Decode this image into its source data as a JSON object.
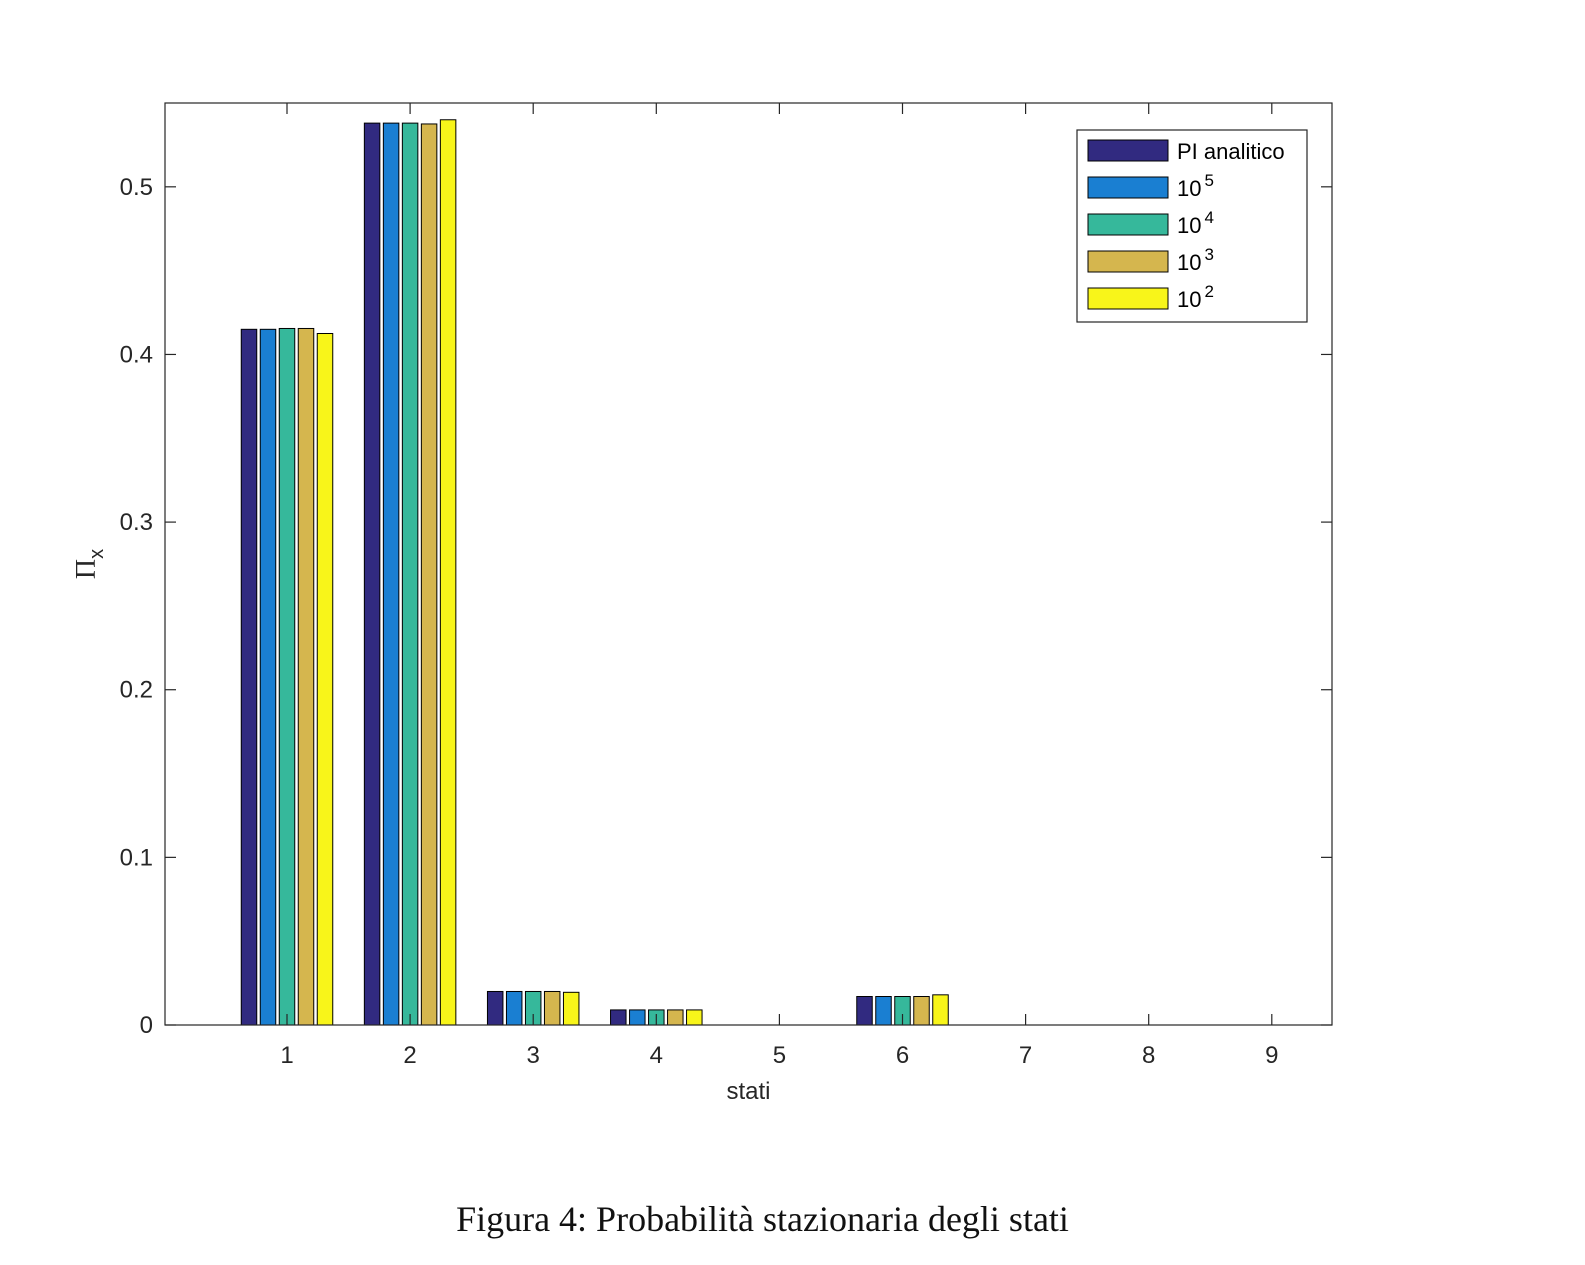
{
  "caption": "Figura 4: Probabilità stazionaria degli stati",
  "chart_data": {
    "type": "bar",
    "title": "",
    "xlabel": "stati",
    "ylabel": "Πx",
    "ylabel_main": "Π",
    "ylabel_sub": "x",
    "categories": [
      "1",
      "2",
      "3",
      "4",
      "5",
      "6",
      "7",
      "8",
      "9"
    ],
    "ylim": [
      0,
      0.55
    ],
    "yticks": [
      0,
      0.1,
      0.2,
      0.3,
      0.4,
      0.5
    ],
    "ytick_labels": [
      "0",
      "0.1",
      "0.2",
      "0.3",
      "0.4",
      "0.5"
    ],
    "grid": false,
    "legend_position": "top-right",
    "series": [
      {
        "name": "PI analitico",
        "legend_base": "PI analitico",
        "legend_exp": "",
        "color": "#312a80",
        "values": [
          0.415,
          0.538,
          0.02,
          0.009,
          0,
          0.017,
          0,
          0,
          0
        ]
      },
      {
        "name": "10^5",
        "legend_base": "10",
        "legend_exp": "5",
        "color": "#1a7fd2",
        "values": [
          0.415,
          0.538,
          0.02,
          0.009,
          0,
          0.017,
          0,
          0,
          0
        ]
      },
      {
        "name": "10^4",
        "legend_base": "10",
        "legend_exp": "4",
        "color": "#36b89b",
        "values": [
          0.4155,
          0.538,
          0.02,
          0.009,
          0,
          0.017,
          0,
          0,
          0
        ]
      },
      {
        "name": "10^3",
        "legend_base": "10",
        "legend_exp": "3",
        "color": "#d5b64e",
        "values": [
          0.4155,
          0.5375,
          0.02,
          0.009,
          0,
          0.017,
          0,
          0,
          0
        ]
      },
      {
        "name": "10^2",
        "legend_base": "10",
        "legend_exp": "2",
        "color": "#f8f51a",
        "values": [
          0.4125,
          0.54,
          0.0195,
          0.009,
          0,
          0.018,
          0,
          0,
          0
        ]
      }
    ]
  }
}
